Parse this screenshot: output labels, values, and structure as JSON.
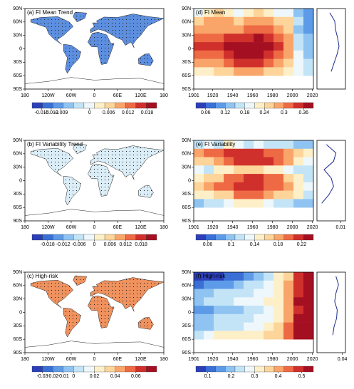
{
  "chart_data": [
    {
      "type": "map",
      "title": "(a) FI Mean Trend",
      "land_color": "#5d8fe0",
      "xlim": [
        -180,
        180
      ],
      "xticks": [
        {
          "value": -180,
          "label": "180"
        },
        {
          "value": -120,
          "label": "120W"
        },
        {
          "value": -60,
          "label": "60W"
        },
        0,
        {
          "value": 60,
          "label": "60E"
        },
        {
          "value": 120,
          "label": "120E"
        },
        {
          "value": 180,
          "label": "180"
        }
      ],
      "ylim": [
        -90,
        90
      ],
      "yticks": [
        {
          "value": 90,
          "label": "90N"
        },
        {
          "value": 60,
          "label": "60N"
        },
        {
          "value": 30,
          "label": "30N"
        },
        0,
        {
          "value": -30,
          "label": "30S"
        },
        {
          "value": -60,
          "label": "60S"
        },
        {
          "value": -90,
          "label": "90S"
        }
      ],
      "colors": [
        "#2c3fb8",
        "#3a6fd6",
        "#5d9be8",
        "#8fc3f2",
        "#c3e4f7",
        "#eef7fb",
        "#fdf0c8",
        "#fdd49a",
        "#f9a56a",
        "#ee6a44",
        "#d0302c",
        "#a50f22"
      ],
      "clim": [
        -0.018,
        0.021
      ],
      "cticks": [
        -0.015,
        -0.012,
        -0.009,
        0,
        0.006,
        0.012,
        0.018
      ]
    },
    {
      "type": "map",
      "title": "(b) FI Variability Trend",
      "land_color": "#dbeef8",
      "xlim": [
        -180,
        180
      ],
      "xticks": [
        {
          "value": -180,
          "label": "180"
        },
        {
          "value": -120,
          "label": "120W"
        },
        {
          "value": -60,
          "label": "60W"
        },
        0,
        {
          "value": 60,
          "label": "60E"
        },
        {
          "value": 120,
          "label": "120E"
        },
        {
          "value": 180,
          "label": "180"
        }
      ],
      "ylim": [
        -90,
        90
      ],
      "yticks": [
        {
          "value": 90,
          "label": "90N"
        },
        {
          "value": 60,
          "label": "60N"
        },
        {
          "value": 30,
          "label": "30N"
        },
        0,
        {
          "value": -30,
          "label": "30S"
        },
        {
          "value": -60,
          "label": "60S"
        },
        {
          "value": -90,
          "label": "90S"
        }
      ],
      "colors": [
        "#2c3fb8",
        "#3a6fd6",
        "#5d9be8",
        "#8fc3f2",
        "#c3e4f7",
        "#eef7fb",
        "#fdf0c8",
        "#fdd49a",
        "#f9a56a",
        "#ee6a44",
        "#d0302c",
        "#a50f22"
      ],
      "clim": [
        -0.024,
        0.024
      ],
      "cticks": [
        -0.018,
        -0.012,
        -0.006,
        0,
        0.006,
        0.012,
        0.018
      ]
    },
    {
      "type": "map",
      "title": "(c) High-risk",
      "land_color": "#f0925e",
      "xlim": [
        -180,
        180
      ],
      "xticks": [
        {
          "value": -180,
          "label": "180"
        },
        {
          "value": -120,
          "label": "120W"
        },
        {
          "value": -60,
          "label": "60W"
        },
        0,
        {
          "value": 60,
          "label": "60E"
        },
        {
          "value": 120,
          "label": "120E"
        },
        {
          "value": 180,
          "label": "180"
        }
      ],
      "ylim": [
        -90,
        90
      ],
      "yticks": [
        {
          "value": 90,
          "label": "90N"
        },
        {
          "value": 60,
          "label": "60N"
        },
        {
          "value": 30,
          "label": "30N"
        },
        0,
        {
          "value": -30,
          "label": "30S"
        },
        {
          "value": -60,
          "label": "60S"
        },
        {
          "value": -90,
          "label": "90S"
        }
      ],
      "colors": [
        "#2c3fb8",
        "#3a6fd6",
        "#5d9be8",
        "#8fc3f2",
        "#c3e4f7",
        "#eef7fb",
        "#fdf0c8",
        "#fdd49a",
        "#f9a56a",
        "#ee6a44",
        "#d0302c",
        "#a50f22"
      ],
      "clim": [
        -0.04,
        0.08
      ],
      "cticks": [
        -0.03,
        -0.02,
        -0.01,
        0,
        0.02,
        0.04,
        0.06
      ]
    },
    {
      "type": "heatmap",
      "title": "(d) FI Mean",
      "xlim": [
        1901,
        2021
      ],
      "xticks": [
        1901,
        1920,
        1940,
        1960,
        1980,
        2000,
        2020
      ],
      "ylim": [
        -90,
        90
      ],
      "yticks": [
        {
          "value": 90,
          "label": "90N"
        },
        {
          "value": 60,
          "label": "60N"
        },
        {
          "value": 30,
          "label": "30N"
        },
        0,
        {
          "value": -30,
          "label": "30S"
        },
        {
          "value": -60,
          "label": "60S"
        },
        {
          "value": -90,
          "label": "90S"
        }
      ],
      "x_edges": [
        1901,
        1911,
        1921,
        1931,
        1941,
        1951,
        1961,
        1971,
        1981,
        1991,
        2001,
        2011,
        2021
      ],
      "y_edges": [
        90,
        71.25,
        52.5,
        33.75,
        15,
        -3.75,
        -22.5,
        -41.25,
        -60
      ],
      "values": [
        [
          0.2,
          0.22,
          0.24,
          0.22,
          0.2,
          0.22,
          0.24,
          0.22,
          0.2,
          0.18,
          0.12,
          0.09
        ],
        [
          0.26,
          0.27,
          0.28,
          0.27,
          0.26,
          0.28,
          0.29,
          0.28,
          0.26,
          0.24,
          0.15,
          0.1
        ],
        [
          0.27,
          0.28,
          0.27,
          0.28,
          0.29,
          0.3,
          0.31,
          0.3,
          0.28,
          0.25,
          0.14,
          0.1
        ],
        [
          0.3,
          0.32,
          0.3,
          0.33,
          0.34,
          0.35,
          0.36,
          0.34,
          0.31,
          0.27,
          0.15,
          0.12
        ],
        [
          0.33,
          0.34,
          0.35,
          0.36,
          0.37,
          0.38,
          0.37,
          0.36,
          0.33,
          0.28,
          0.16,
          0.12
        ],
        [
          0.3,
          0.31,
          0.32,
          0.33,
          0.36,
          0.37,
          0.36,
          0.35,
          0.32,
          0.27,
          0.18,
          0.13
        ],
        [
          0.27,
          0.28,
          0.29,
          0.31,
          0.33,
          0.34,
          0.33,
          0.31,
          0.29,
          0.26,
          0.2,
          0.16
        ],
        [
          0.22,
          0.23,
          0.24,
          0.26,
          0.27,
          0.28,
          0.27,
          0.26,
          0.25,
          0.23,
          0.2,
          0.16
        ]
      ],
      "colors": [
        "#2c3fb8",
        "#3a6fd6",
        "#5d9be8",
        "#8fc3f2",
        "#c3e4f7",
        "#eef7fb",
        "#fdf0c8",
        "#fdd49a",
        "#f9a56a",
        "#ee6a44",
        "#d0302c",
        "#a50f22"
      ],
      "clim": [
        0.03,
        0.39
      ],
      "cticks": [
        0.06,
        0.12,
        0.18,
        0.24,
        0.3,
        0.36
      ],
      "profile": [
        0.18,
        0.25,
        0.26,
        0.29,
        0.31,
        0.28,
        0.24,
        0.2
      ],
      "profile_xlim": [
        0,
        0.4
      ],
      "profile_xticks": []
    },
    {
      "type": "heatmap",
      "title": "(e) FI Variability",
      "xlim": [
        1901,
        2021
      ],
      "xticks": [
        1901,
        1920,
        1940,
        1960,
        1980,
        2000,
        2020
      ],
      "ylim": [
        -90,
        90
      ],
      "yticks": [
        {
          "value": 90,
          "label": "90N"
        },
        {
          "value": 60,
          "label": "60N"
        },
        {
          "value": 30,
          "label": "30N"
        },
        0,
        {
          "value": -30,
          "label": "30S"
        },
        {
          "value": -60,
          "label": "60S"
        },
        {
          "value": -90,
          "label": "90S"
        }
      ],
      "x_edges": [
        1901,
        1911,
        1921,
        1931,
        1941,
        1951,
        1961,
        1971,
        1981,
        1991,
        2001,
        2011,
        2021
      ],
      "y_edges": [
        90,
        71.25,
        52.5,
        33.75,
        15,
        -3.75,
        -22.5,
        -41.25,
        -60
      ],
      "values": [
        [
          0.12,
          0.13,
          0.12,
          0.14,
          0.13,
          0.12,
          0.13,
          0.12,
          0.12,
          0.11,
          0.1,
          0.1
        ],
        [
          0.18,
          0.19,
          0.2,
          0.21,
          0.22,
          0.22,
          0.21,
          0.2,
          0.19,
          0.18,
          0.16,
          0.14
        ],
        [
          0.16,
          0.17,
          0.18,
          0.19,
          0.21,
          0.22,
          0.22,
          0.21,
          0.2,
          0.18,
          0.15,
          0.13
        ],
        [
          0.13,
          0.12,
          0.14,
          0.15,
          0.16,
          0.17,
          0.16,
          0.15,
          0.14,
          0.13,
          0.12,
          0.11
        ],
        [
          0.15,
          0.16,
          0.17,
          0.19,
          0.2,
          0.21,
          0.21,
          0.2,
          0.19,
          0.17,
          0.14,
          0.12
        ],
        [
          0.17,
          0.18,
          0.19,
          0.2,
          0.21,
          0.22,
          0.21,
          0.2,
          0.19,
          0.18,
          0.15,
          0.13
        ],
        [
          0.14,
          0.15,
          0.16,
          0.17,
          0.19,
          0.2,
          0.19,
          0.18,
          0.17,
          0.16,
          0.14,
          0.12
        ],
        [
          0.1,
          0.11,
          0.12,
          0.13,
          0.14,
          0.15,
          0.14,
          0.13,
          0.12,
          0.11,
          0.1,
          0.09
        ]
      ],
      "colors": [
        "#2c3fb8",
        "#3a6fd6",
        "#5d9be8",
        "#8fc3f2",
        "#c3e4f7",
        "#eef7fb",
        "#fdf0c8",
        "#fdd49a",
        "#f9a56a",
        "#ee6a44",
        "#d0302c",
        "#a50f22"
      ],
      "clim": [
        0.04,
        0.24
      ],
      "cticks": [
        0.06,
        0.1,
        0.14,
        0.18,
        0.22
      ],
      "profile": [
        0.004,
        0.008,
        0.007,
        0.003,
        0.006,
        0.007,
        0.005,
        0.002
      ],
      "profile_xlim": [
        0,
        0.012
      ],
      "profile_xticks": [
        0.01
      ]
    },
    {
      "type": "heatmap",
      "title": "(f) High-risk",
      "xlim": [
        1901,
        2021
      ],
      "xticks": [
        1901,
        1920,
        1940,
        1960,
        1980,
        2000,
        2020
      ],
      "ylim": [
        -90,
        90
      ],
      "yticks": [
        {
          "value": 90,
          "label": "90N"
        },
        {
          "value": 60,
          "label": "60N"
        },
        {
          "value": 30,
          "label": "30N"
        },
        0,
        {
          "value": -30,
          "label": "30S"
        },
        {
          "value": -60,
          "label": "60S"
        },
        {
          "value": -90,
          "label": "90S"
        }
      ],
      "x_edges": [
        1901,
        1911,
        1921,
        1931,
        1941,
        1951,
        1961,
        1971,
        1981,
        1991,
        2001,
        2011,
        2021
      ],
      "y_edges": [
        90,
        71.25,
        52.5,
        33.75,
        15,
        -3.75,
        -22.5,
        -41.25,
        -60
      ],
      "values": [
        [
          0.05,
          0.06,
          0.08,
          0.1,
          0.12,
          0.15,
          0.2,
          0.25,
          0.3,
          0.38,
          0.48,
          0.52
        ],
        [
          0.12,
          0.14,
          0.15,
          0.17,
          0.2,
          0.22,
          0.25,
          0.28,
          0.33,
          0.42,
          0.5,
          0.53
        ],
        [
          0.2,
          0.2,
          0.22,
          0.24,
          0.25,
          0.25,
          0.26,
          0.28,
          0.32,
          0.4,
          0.5,
          0.54
        ],
        [
          0.2,
          0.22,
          0.24,
          0.25,
          0.26,
          0.27,
          0.28,
          0.3,
          0.34,
          0.42,
          0.51,
          0.55
        ],
        [
          0.15,
          0.17,
          0.18,
          0.2,
          0.21,
          0.22,
          0.24,
          0.27,
          0.32,
          0.4,
          0.5,
          0.54
        ],
        [
          0.18,
          0.2,
          0.22,
          0.23,
          0.24,
          0.25,
          0.26,
          0.29,
          0.33,
          0.42,
          0.51,
          0.55
        ],
        [
          0.2,
          0.21,
          0.22,
          0.24,
          0.25,
          0.26,
          0.27,
          0.3,
          0.35,
          0.44,
          0.52,
          0.55
        ],
        [
          0.25,
          0.28,
          0.3,
          0.3,
          0.32,
          0.33,
          0.34,
          0.35,
          0.38,
          0.45,
          0.52,
          0.55
        ]
      ],
      "colors": [
        "#2c3fb8",
        "#3a6fd6",
        "#5d9be8",
        "#8fc3f2",
        "#c3e4f7",
        "#eef7fb",
        "#fdf0c8",
        "#fdd49a",
        "#f9a56a",
        "#ee6a44",
        "#d0302c",
        "#a50f22"
      ],
      "clim": [
        0.05,
        0.55
      ],
      "cticks": [
        0.1,
        0.2,
        0.3,
        0.4,
        0.5
      ],
      "profile": [
        0.03,
        0.034,
        0.03,
        0.028,
        0.032,
        0.031,
        0.027,
        0.025
      ],
      "profile_xlim": [
        0,
        0.045
      ],
      "profile_xticks": [
        0.04
      ]
    }
  ]
}
